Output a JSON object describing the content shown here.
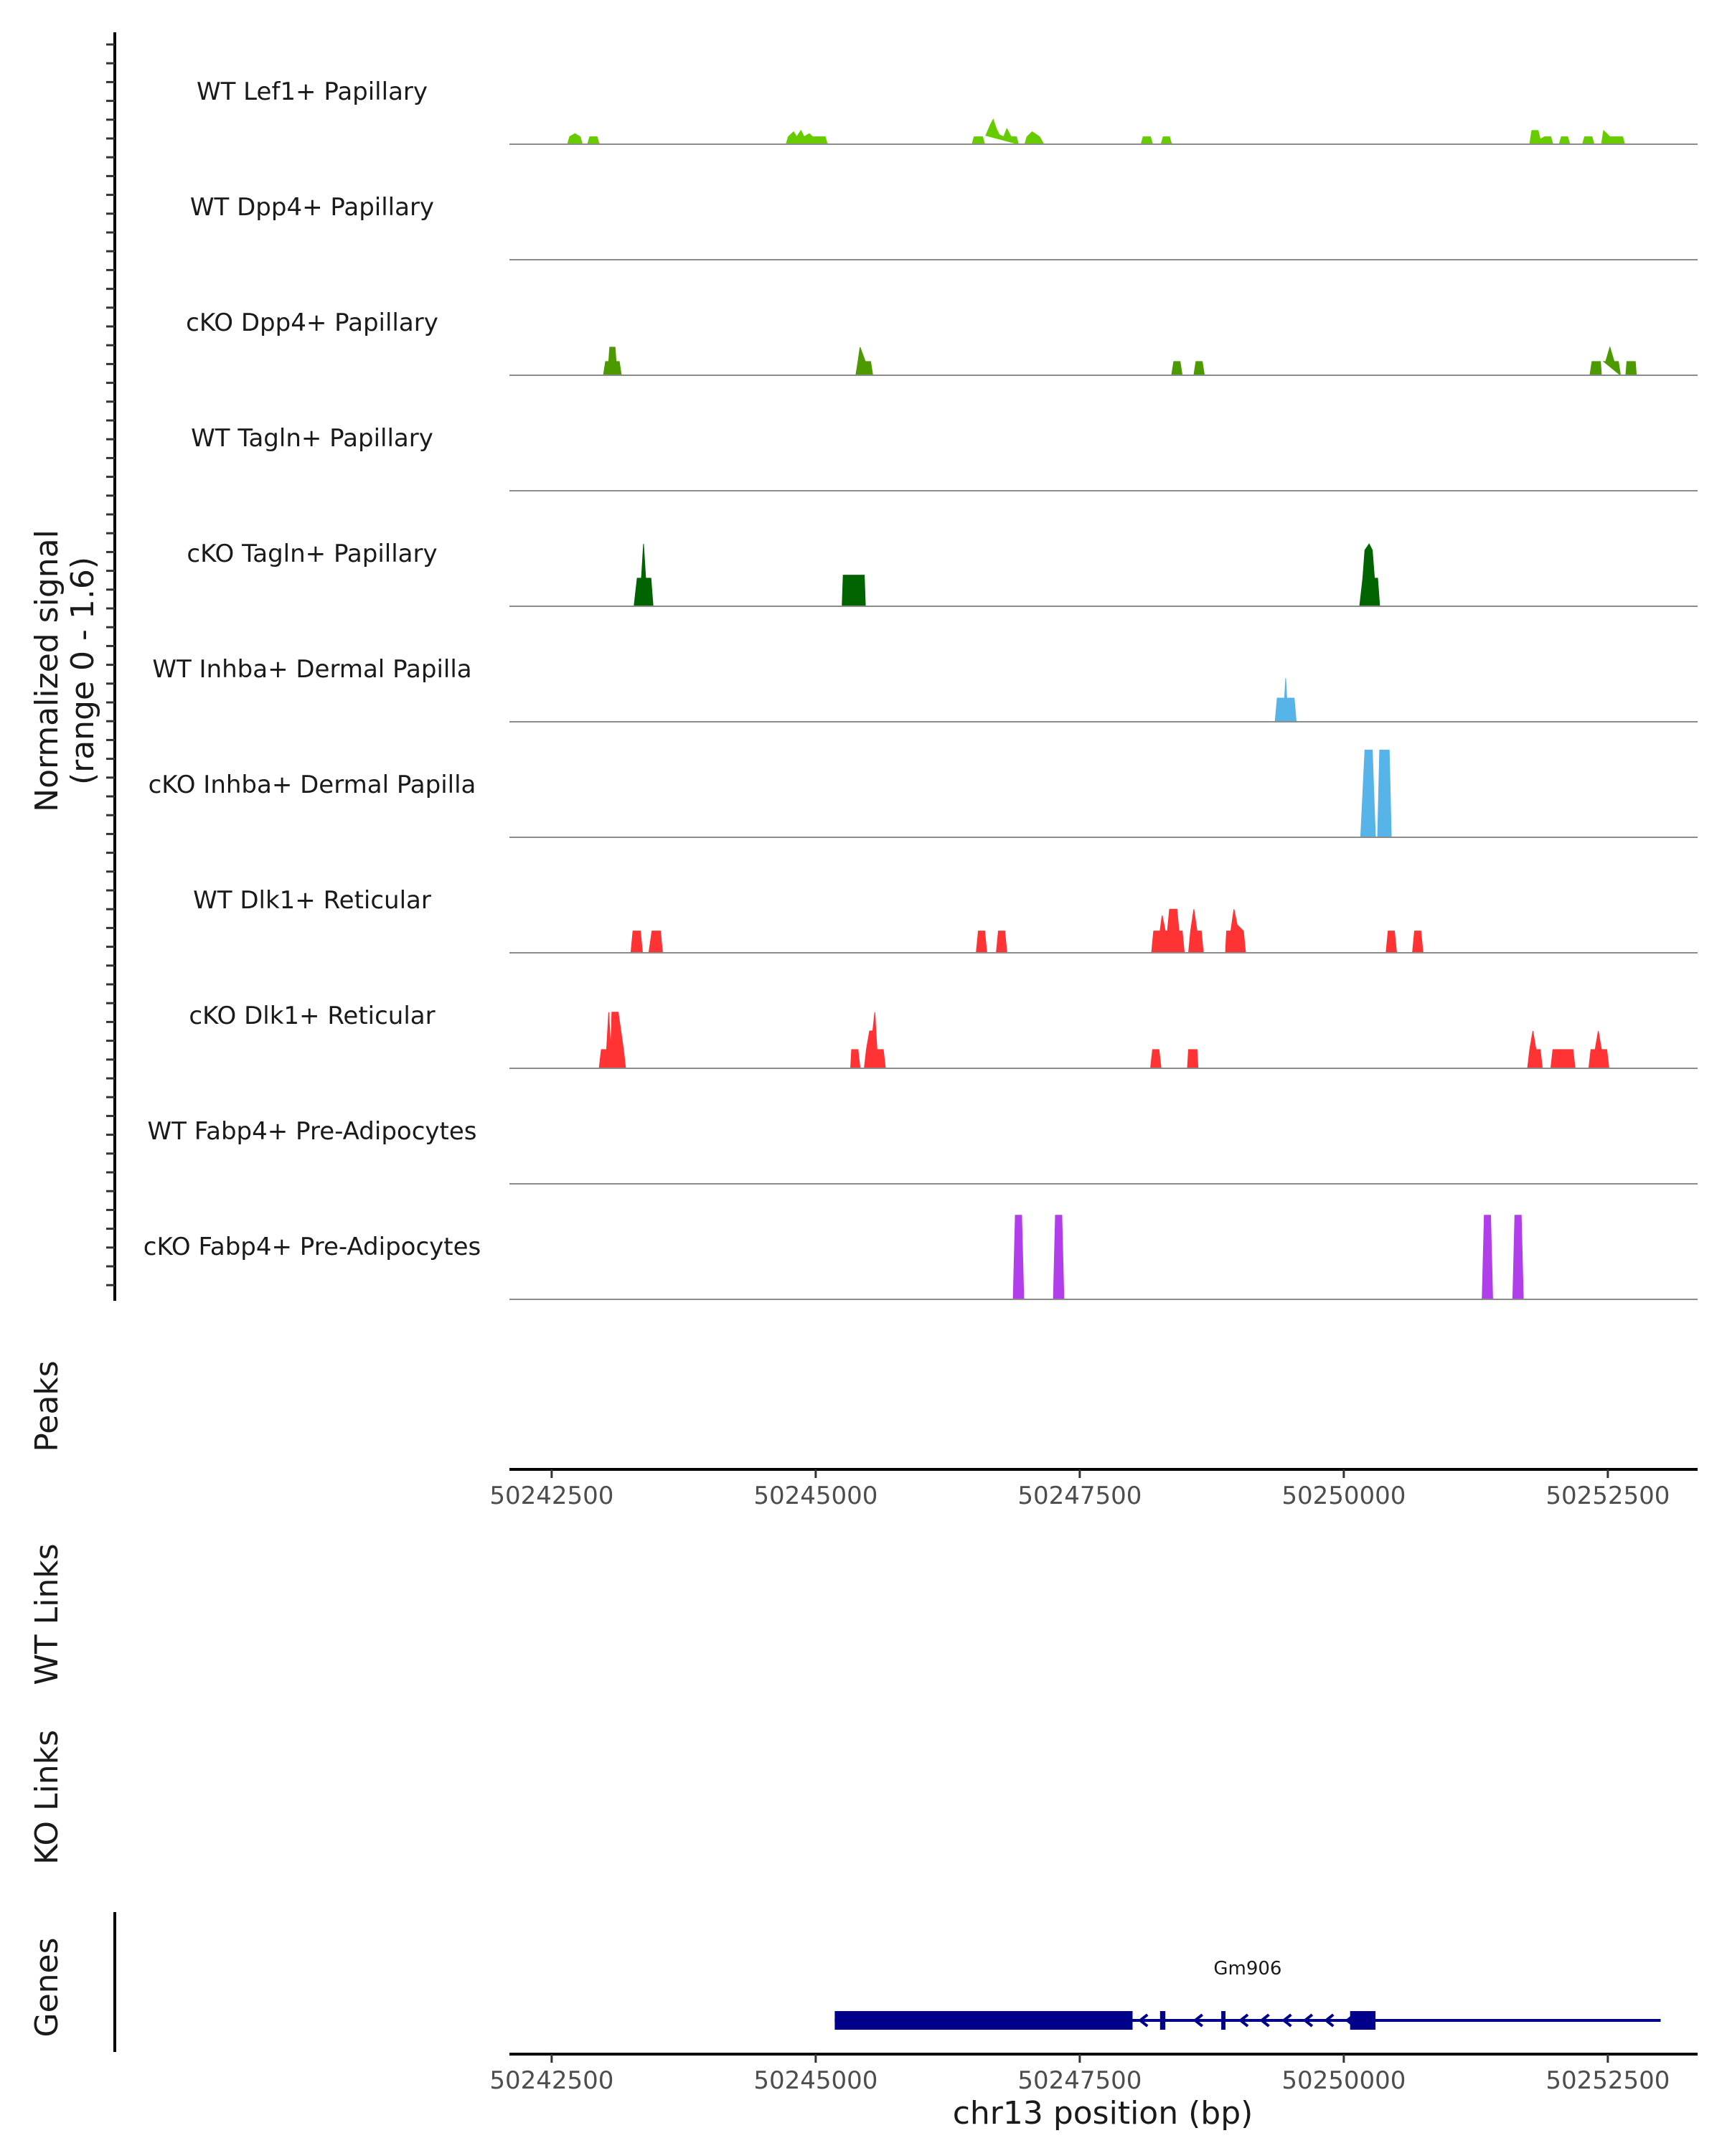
{
  "chart_data": {
    "type": "area",
    "title": "",
    "ylabel_lines": [
      "Normalized signal",
      "(range 0 - 1.6)"
    ],
    "ylim": [
      0,
      1.6
    ],
    "xlabel": "chr13 position (bp)",
    "xlim": [
      50242100,
      50253350
    ],
    "xticks": [
      50242500,
      50245000,
      50247500,
      50250000,
      50252500
    ],
    "xtick_labels": [
      "50242500",
      "50245000",
      "50247500",
      "50250000",
      "50252500"
    ],
    "series": [
      {
        "name": "WT Lef1+ Papillary",
        "color": "#66CC00",
        "points": [
          [
            50242650,
            0
          ],
          [
            50242670,
            0.12
          ],
          [
            50242720,
            0.17
          ],
          [
            50242770,
            0.12
          ],
          [
            50242790,
            0
          ],
          [
            50242840,
            0
          ],
          [
            50242860,
            0.12
          ],
          [
            50242930,
            0.12
          ],
          [
            50242950,
            0
          ],
          [
            50244720,
            0
          ],
          [
            50244740,
            0.12
          ],
          [
            50244790,
            0.2
          ],
          [
            50244820,
            0.12
          ],
          [
            50244860,
            0.22
          ],
          [
            50244890,
            0.12
          ],
          [
            50244940,
            0.17
          ],
          [
            50244970,
            0.12
          ],
          [
            50245090,
            0.12
          ],
          [
            50245110,
            0
          ],
          [
            50246480,
            0
          ],
          [
            50246500,
            0.12
          ],
          [
            50246580,
            0.12
          ],
          [
            50246600,
            0
          ],
          [
            50246610,
            0.14
          ],
          [
            50246650,
            0.3
          ],
          [
            50246680,
            0.4
          ],
          [
            50246710,
            0.25
          ],
          [
            50246740,
            0.15
          ],
          [
            50246780,
            0.12
          ],
          [
            50246810,
            0.25
          ],
          [
            50246850,
            0.12
          ],
          [
            50246900,
            0.12
          ],
          [
            50246920,
            0
          ],
          [
            50246980,
            0
          ],
          [
            50247000,
            0.12
          ],
          [
            50247050,
            0.2
          ],
          [
            50247120,
            0.12
          ],
          [
            50247160,
            0
          ],
          [
            50248080,
            0
          ],
          [
            50248100,
            0.12
          ],
          [
            50248170,
            0.12
          ],
          [
            50248190,
            0
          ],
          [
            50248270,
            0
          ],
          [
            50248290,
            0.12
          ],
          [
            50248350,
            0.12
          ],
          [
            50248370,
            0
          ],
          [
            50251760,
            0
          ],
          [
            50251780,
            0.22
          ],
          [
            50251840,
            0.22
          ],
          [
            50251860,
            0.08
          ],
          [
            50251900,
            0.12
          ],
          [
            50251960,
            0.12
          ],
          [
            50251980,
            0
          ],
          [
            50252040,
            0
          ],
          [
            50252060,
            0.12
          ],
          [
            50252120,
            0.12
          ],
          [
            50252140,
            0
          ],
          [
            50252260,
            0
          ],
          [
            50252280,
            0.12
          ],
          [
            50252350,
            0.12
          ],
          [
            50252370,
            0
          ],
          [
            50252440,
            0
          ],
          [
            50252460,
            0.22
          ],
          [
            50252520,
            0.12
          ],
          [
            50252640,
            0.12
          ],
          [
            50252660,
            0
          ]
        ]
      },
      {
        "name": "WT Dpp4+ Papillary",
        "color": "#4C9A00",
        "points": []
      },
      {
        "name": "cKO Dpp4+ Papillary",
        "color": "#4C9A00",
        "points": [
          [
            50242990,
            0
          ],
          [
            50243010,
            0.22
          ],
          [
            50243040,
            0.22
          ],
          [
            50243050,
            0.45
          ],
          [
            50243100,
            0.45
          ],
          [
            50243110,
            0.22
          ],
          [
            50243140,
            0.22
          ],
          [
            50243160,
            0
          ],
          [
            50245380,
            0
          ],
          [
            50245400,
            0.22
          ],
          [
            50245420,
            0.45
          ],
          [
            50245470,
            0.22
          ],
          [
            50245520,
            0.22
          ],
          [
            50245540,
            0
          ],
          [
            50248370,
            0
          ],
          [
            50248390,
            0.22
          ],
          [
            50248450,
            0.22
          ],
          [
            50248470,
            0
          ],
          [
            50248580,
            0
          ],
          [
            50248600,
            0.22
          ],
          [
            50248660,
            0.22
          ],
          [
            50248680,
            0
          ],
          [
            50252330,
            0
          ],
          [
            50252350,
            0.22
          ],
          [
            50252430,
            0.22
          ],
          [
            50252440,
            0
          ],
          [
            50252460,
            0.22
          ],
          [
            50252480,
            0.22
          ],
          [
            50252520,
            0.45
          ],
          [
            50252560,
            0.22
          ],
          [
            50252600,
            0.22
          ],
          [
            50252620,
            0
          ],
          [
            50252670,
            0
          ],
          [
            50252680,
            0.22
          ],
          [
            50252760,
            0.22
          ],
          [
            50252770,
            0
          ]
        ]
      },
      {
        "name": "WT Tagln+ Papillary",
        "color": "#006400",
        "points": []
      },
      {
        "name": "cKO Tagln+ Papillary",
        "color": "#006400",
        "points": [
          [
            50243280,
            0
          ],
          [
            50243310,
            0.45
          ],
          [
            50243350,
            0.45
          ],
          [
            50243370,
            1.0
          ],
          [
            50243390,
            0.45
          ],
          [
            50243440,
            0.45
          ],
          [
            50243460,
            0
          ],
          [
            50245250,
            0
          ],
          [
            50245260,
            0.5
          ],
          [
            50245460,
            0.5
          ],
          [
            50245470,
            0
          ],
          [
            50250150,
            0
          ],
          [
            50250180,
            0.45
          ],
          [
            50250200,
            0.9
          ],
          [
            50250240,
            1.0
          ],
          [
            50250270,
            0.9
          ],
          [
            50250290,
            0.45
          ],
          [
            50250320,
            0.45
          ],
          [
            50250340,
            0
          ]
        ]
      },
      {
        "name": "WT Inhba+ Dermal Papilla",
        "color": "#56B4E9",
        "points": [
          [
            50249350,
            0
          ],
          [
            50249370,
            0.38
          ],
          [
            50249440,
            0.38
          ],
          [
            50249450,
            0.7
          ],
          [
            50249460,
            0.38
          ],
          [
            50249530,
            0.38
          ],
          [
            50249550,
            0
          ]
        ]
      },
      {
        "name": "cKO Inhba+ Dermal Papilla",
        "color": "#56B4E9",
        "points": [
          [
            50250160,
            0
          ],
          [
            50250200,
            1.4
          ],
          [
            50250270,
            1.4
          ],
          [
            50250300,
            0
          ],
          [
            50250320,
            0
          ],
          [
            50250340,
            1.4
          ],
          [
            50250430,
            1.4
          ],
          [
            50250450,
            0
          ]
        ]
      },
      {
        "name": "WT Dlk1+ Reticular",
        "color": "#FF3333",
        "points": [
          [
            50243250,
            0
          ],
          [
            50243270,
            0.35
          ],
          [
            50243340,
            0.35
          ],
          [
            50243360,
            0
          ],
          [
            50243420,
            0
          ],
          [
            50243450,
            0.35
          ],
          [
            50243530,
            0.35
          ],
          [
            50243550,
            0
          ],
          [
            50246520,
            0
          ],
          [
            50246540,
            0.35
          ],
          [
            50246600,
            0.35
          ],
          [
            50246620,
            0
          ],
          [
            50246710,
            0
          ],
          [
            50246730,
            0.35
          ],
          [
            50246790,
            0.35
          ],
          [
            50246810,
            0
          ],
          [
            50248180,
            0
          ],
          [
            50248200,
            0.35
          ],
          [
            50248260,
            0.35
          ],
          [
            50248280,
            0.6
          ],
          [
            50248310,
            0.35
          ],
          [
            50248330,
            0.35
          ],
          [
            50248350,
            0.7
          ],
          [
            50248420,
            0.7
          ],
          [
            50248440,
            0.35
          ],
          [
            50248470,
            0.35
          ],
          [
            50248490,
            0
          ],
          [
            50248530,
            0
          ],
          [
            50248550,
            0.35
          ],
          [
            50248580,
            0.7
          ],
          [
            50248610,
            0.35
          ],
          [
            50248650,
            0.35
          ],
          [
            50248670,
            0
          ],
          [
            50248880,
            0
          ],
          [
            50248890,
            0.35
          ],
          [
            50248930,
            0.35
          ],
          [
            50248960,
            0.7
          ],
          [
            50248990,
            0.45
          ],
          [
            50249050,
            0.35
          ],
          [
            50249070,
            0
          ],
          [
            50250400,
            0
          ],
          [
            50250420,
            0.35
          ],
          [
            50250480,
            0.35
          ],
          [
            50250500,
            0
          ],
          [
            50250650,
            0
          ],
          [
            50250670,
            0.35
          ],
          [
            50250730,
            0.35
          ],
          [
            50250750,
            0
          ]
        ]
      },
      {
        "name": "cKO Dlk1+ Reticular",
        "color": "#FF3333",
        "points": [
          [
            50242950,
            0
          ],
          [
            50242970,
            0.3
          ],
          [
            50243020,
            0.3
          ],
          [
            50243040,
            0.9
          ],
          [
            50243060,
            0.3
          ],
          [
            50243070,
            0.9
          ],
          [
            50243130,
            0.9
          ],
          [
            50243180,
            0.3
          ],
          [
            50243200,
            0
          ],
          [
            50245330,
            0
          ],
          [
            50245340,
            0.3
          ],
          [
            50245400,
            0.3
          ],
          [
            50245420,
            0
          ],
          [
            50245460,
            0
          ],
          [
            50245480,
            0.3
          ],
          [
            50245510,
            0.6
          ],
          [
            50245540,
            0.6
          ],
          [
            50245560,
            0.9
          ],
          [
            50245580,
            0.3
          ],
          [
            50245640,
            0.3
          ],
          [
            50245660,
            0
          ],
          [
            50248170,
            0
          ],
          [
            50248190,
            0.3
          ],
          [
            50248250,
            0.3
          ],
          [
            50248270,
            0
          ],
          [
            50248520,
            0
          ],
          [
            50248530,
            0.3
          ],
          [
            50248610,
            0.3
          ],
          [
            50248620,
            0
          ],
          [
            50251740,
            0
          ],
          [
            50251760,
            0.3
          ],
          [
            50251790,
            0.6
          ],
          [
            50251820,
            0.3
          ],
          [
            50251860,
            0.3
          ],
          [
            50251880,
            0
          ],
          [
            50251960,
            0
          ],
          [
            50251980,
            0.3
          ],
          [
            50252170,
            0.3
          ],
          [
            50252190,
            0
          ],
          [
            50252320,
            0
          ],
          [
            50252340,
            0.3
          ],
          [
            50252380,
            0.3
          ],
          [
            50252410,
            0.6
          ],
          [
            50252440,
            0.3
          ],
          [
            50252490,
            0.3
          ],
          [
            50252510,
            0
          ]
        ]
      },
      {
        "name": "WT Fabp4+ Pre-Adipocytes",
        "color": "#B03FEB",
        "points": []
      },
      {
        "name": "cKO Fabp4+ Pre-Adipocytes",
        "color": "#B03FEB",
        "points": [
          [
            50246870,
            0
          ],
          [
            50246890,
            1.35
          ],
          [
            50246950,
            1.35
          ],
          [
            50246970,
            0
          ],
          [
            50247250,
            0
          ],
          [
            50247270,
            1.35
          ],
          [
            50247330,
            1.35
          ],
          [
            50247350,
            0
          ],
          [
            50251310,
            0
          ],
          [
            50251330,
            1.35
          ],
          [
            50251390,
            1.35
          ],
          [
            50251410,
            0
          ],
          [
            50251600,
            0
          ],
          [
            50251620,
            1.35
          ],
          [
            50251680,
            1.35
          ],
          [
            50251700,
            0
          ]
        ]
      }
    ],
    "side_labels": {
      "peaks": "Peaks",
      "wt_links": "WT Links",
      "ko_links": "KO Links",
      "genes": "Genes"
    },
    "gene": {
      "name": "Gm906",
      "color": "#00008B",
      "start": 50245180,
      "end": 50253000,
      "exons": [
        [
          50245180,
          50248000
        ],
        [
          50248260,
          50248310
        ],
        [
          50248840,
          50248880
        ],
        [
          50250060,
          50250300
        ]
      ],
      "intron_arrow_positions": [
        50248100,
        50248620,
        50249050,
        50249250,
        50249460,
        50249660,
        50249860,
        50250060
      ]
    }
  }
}
